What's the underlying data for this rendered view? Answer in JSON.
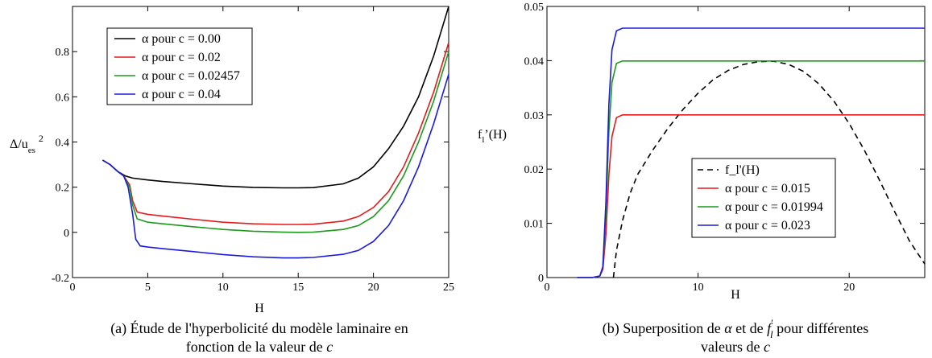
{
  "chart_data": [
    {
      "type": "line",
      "xlabel": "H",
      "ylabel": "Δ/u_es^2",
      "xlim": [
        0,
        25
      ],
      "ylim": [
        -0.2,
        1.0
      ],
      "x_ticks": [
        "0",
        "5",
        "10",
        "15",
        "20",
        "25"
      ],
      "y_ticks": [
        "-0.2",
        "0",
        "0.2",
        "0.4",
        "0.6",
        "0.8"
      ],
      "grid": false,
      "legend_position": "top-left",
      "caption": "(a) Étude de l'hyperbolicité du modèle laminaire en fonction de la valeur de c",
      "series": [
        {
          "name": "α pour c = 0.00",
          "color": "#000000",
          "x": [
            2.0,
            2.5,
            3.0,
            3.5,
            4.0,
            5,
            6,
            8,
            10,
            12,
            14,
            15,
            16,
            18,
            19,
            20,
            21,
            22,
            23,
            24,
            25
          ],
          "y": [
            0.32,
            0.3,
            0.27,
            0.25,
            0.24,
            0.232,
            0.225,
            0.215,
            0.205,
            0.199,
            0.197,
            0.197,
            0.198,
            0.215,
            0.24,
            0.29,
            0.37,
            0.47,
            0.6,
            0.78,
            1.0
          ]
        },
        {
          "name": "α pour c = 0.02",
          "color": "#e41a1c",
          "x": [
            2.0,
            2.5,
            3.0,
            3.4,
            3.8,
            4.0,
            4.3,
            5,
            6,
            8,
            10,
            12,
            14,
            15,
            16,
            18,
            19,
            20,
            21,
            22,
            23,
            24,
            25
          ],
          "y": [
            0.32,
            0.3,
            0.27,
            0.25,
            0.21,
            0.14,
            0.09,
            0.08,
            0.072,
            0.058,
            0.045,
            0.038,
            0.035,
            0.035,
            0.036,
            0.05,
            0.07,
            0.11,
            0.18,
            0.29,
            0.44,
            0.62,
            0.84
          ]
        },
        {
          "name": "α pour c = 0.02457",
          "color": "#1a9a1a",
          "x": [
            2.0,
            2.5,
            3.0,
            3.4,
            3.8,
            4.0,
            4.3,
            5,
            6,
            8,
            10,
            12,
            14,
            15,
            16,
            18,
            19,
            20,
            21,
            22,
            23,
            24,
            25
          ],
          "y": [
            0.32,
            0.3,
            0.27,
            0.25,
            0.2,
            0.12,
            0.06,
            0.045,
            0.038,
            0.025,
            0.013,
            0.005,
            0.001,
            0.0,
            0.001,
            0.013,
            0.03,
            0.07,
            0.14,
            0.25,
            0.4,
            0.58,
            0.8
          ]
        },
        {
          "name": "α pour c = 0.04",
          "color": "#1a1adf",
          "x": [
            2.0,
            2.5,
            3.0,
            3.4,
            3.7,
            4.0,
            4.2,
            4.5,
            5,
            6,
            8,
            10,
            12,
            14,
            15,
            16,
            18,
            19,
            20,
            21,
            22,
            23,
            24,
            25
          ],
          "y": [
            0.32,
            0.3,
            0.27,
            0.25,
            0.2,
            0.08,
            -0.03,
            -0.06,
            -0.065,
            -0.072,
            -0.085,
            -0.098,
            -0.108,
            -0.113,
            -0.113,
            -0.111,
            -0.097,
            -0.08,
            -0.04,
            0.03,
            0.14,
            0.29,
            0.48,
            0.7
          ]
        }
      ]
    },
    {
      "type": "line",
      "xlabel": "H",
      "ylabel": "f_l'(H)",
      "xlim": [
        0,
        25
      ],
      "ylim": [
        0,
        0.05
      ],
      "x_ticks": [
        "0",
        "10",
        "20"
      ],
      "y_ticks": [
        "0",
        "0.01",
        "0.02",
        "0.03",
        "0.04",
        "0.05"
      ],
      "grid": false,
      "legend_position": "bottom-right",
      "caption": "(b) Superposition de α et de f′_l pour différentes valeurs de c",
      "series": [
        {
          "name": "f_l'(H)",
          "color": "#000000",
          "dashed": true,
          "x": [
            4.4,
            4.6,
            5,
            5.5,
            6,
            7,
            8,
            9,
            10,
            11,
            12,
            13,
            14,
            15,
            16,
            17,
            18,
            19,
            20,
            21,
            22,
            23,
            24,
            25
          ],
          "y": [
            0.0,
            0.005,
            0.0105,
            0.0155,
            0.019,
            0.0235,
            0.0275,
            0.031,
            0.034,
            0.0365,
            0.0382,
            0.0393,
            0.0398,
            0.0399,
            0.0393,
            0.038,
            0.0357,
            0.0325,
            0.0284,
            0.0235,
            0.018,
            0.0122,
            0.0067,
            0.0025
          ]
        },
        {
          "name": "α pour c = 0.015",
          "color": "#e41a1c",
          "x": [
            2.0,
            3.0,
            3.5,
            3.7,
            3.9,
            4.1,
            4.3,
            4.6,
            5.0,
            25
          ],
          "y": [
            0.0,
            0.0,
            0.0003,
            0.0015,
            0.008,
            0.019,
            0.026,
            0.0295,
            0.03,
            0.03
          ]
        },
        {
          "name": "α pour c = 0.01994",
          "color": "#1a9a1a",
          "x": [
            2.0,
            3.0,
            3.5,
            3.7,
            3.9,
            4.1,
            4.3,
            4.6,
            5.0,
            25
          ],
          "y": [
            0.0,
            0.0,
            0.0003,
            0.002,
            0.012,
            0.027,
            0.036,
            0.0395,
            0.03994,
            0.03994
          ]
        },
        {
          "name": "α pour c = 0.023",
          "color": "#1a1adf",
          "x": [
            2.0,
            3.0,
            3.5,
            3.7,
            3.9,
            4.1,
            4.3,
            4.6,
            5.0,
            25
          ],
          "y": [
            0.0,
            0.0,
            0.0003,
            0.002,
            0.014,
            0.032,
            0.042,
            0.0455,
            0.046,
            0.046
          ]
        }
      ]
    }
  ]
}
